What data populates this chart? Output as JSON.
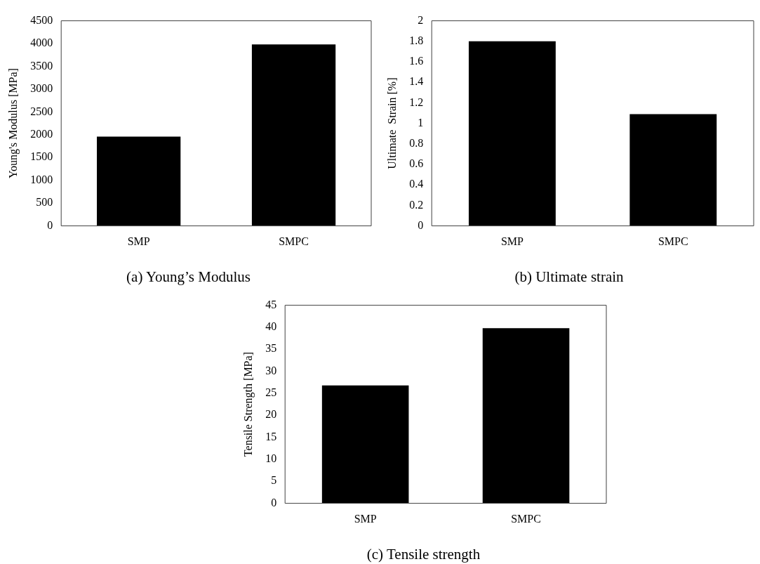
{
  "chart_data": [
    {
      "type": "bar",
      "title": "(a) Young’s Modulus",
      "ylabel": "Young's Modulus [MPa]",
      "categories": [
        "SMP",
        "SMPC"
      ],
      "values": [
        1960,
        3980
      ],
      "color": "#000000",
      "ylim": [
        0,
        4500
      ],
      "yticks": [
        0,
        500,
        1000,
        1500,
        2000,
        2500,
        3000,
        3500,
        4000,
        4500
      ],
      "grid": false
    },
    {
      "type": "bar",
      "title": "(b) Ultimate strain",
      "ylabel": "Ultimate  Strain [%]",
      "categories": [
        "SMP",
        "SMPC"
      ],
      "values": [
        1.8,
        1.09
      ],
      "color": "#000000",
      "ylim": [
        0,
        2
      ],
      "yticks": [
        0,
        {
          "value": 0.2,
          "label": "0.2"
        },
        {
          "value": 0.4,
          "label": "0.4"
        },
        {
          "value": 0.6,
          "label": "0.6"
        },
        {
          "value": 0.8,
          "label": "0.8"
        },
        1,
        {
          "value": 1.2,
          "label": "1.2"
        },
        {
          "value": 1.4,
          "label": "1.4"
        },
        {
          "value": 1.6,
          "label": "1.6"
        },
        {
          "value": 1.8,
          "label": "1.8"
        },
        2
      ],
      "grid": false
    },
    {
      "type": "bar",
      "title": "(c) Tensile strength",
      "ylabel": "Tensile Strength [MPa]",
      "categories": [
        "SMP",
        "SMPC"
      ],
      "values": [
        26.8,
        39.8
      ],
      "color": "#000000",
      "ylim": [
        0,
        45
      ],
      "yticks": [
        0,
        5,
        10,
        15,
        20,
        25,
        30,
        35,
        40,
        45
      ],
      "grid": false
    }
  ]
}
